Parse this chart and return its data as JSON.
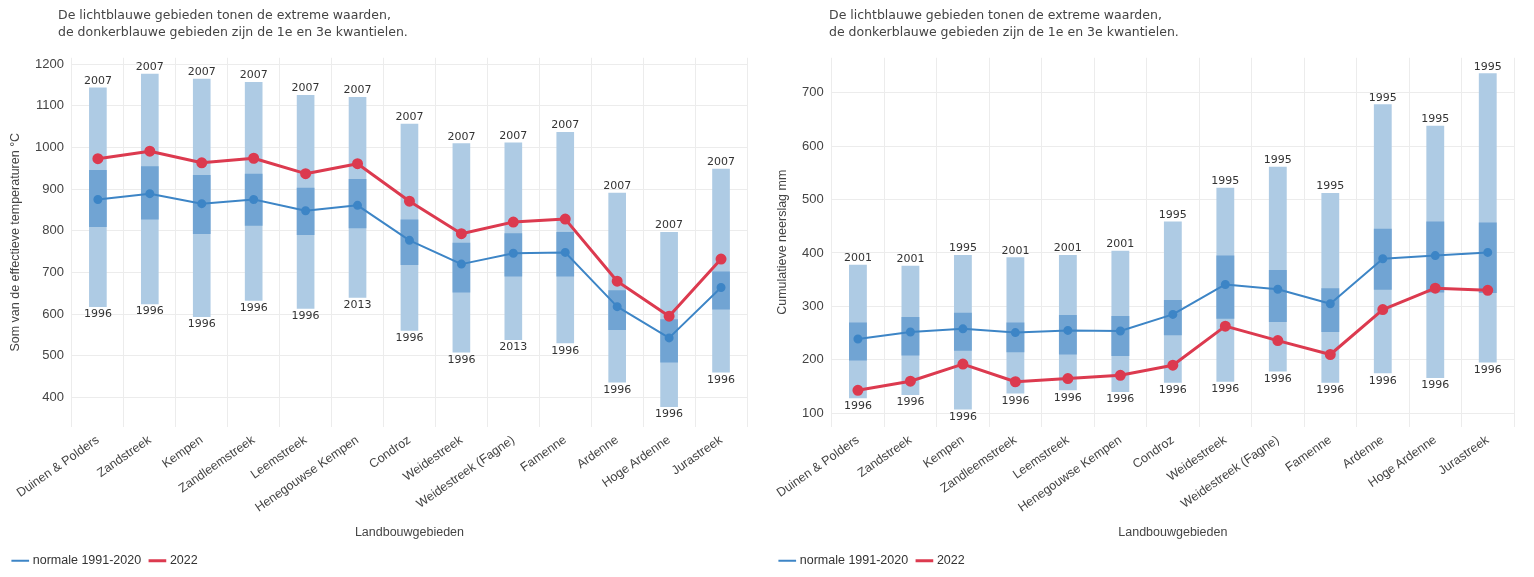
{
  "chart_data": [
    {
      "type": "bar",
      "title": "De lichtblauwe gebieden tonen de extreme waarden,\nde donkerblauwe gebieden zijn de 1e en 3e kwantielen.",
      "xlabel": "Landbouwgebieden",
      "ylabel": "Som van de effectieve temperaturen °C",
      "categories": [
        "Duinen & Polders",
        "Zandstreek",
        "Kempen",
        "Zandleemstreek",
        "Leemstreek",
        "Henegouwse Kempen",
        "Condroz",
        "Weidestreek",
        "Weidestreek (Fagne)",
        "Famenne",
        "Ardenne",
        "Hoge Ardenne",
        "Jurastreek"
      ],
      "series": [
        {
          "color": "#aecbe4",
          "base": [
            617,
            624,
            593,
            632,
            613,
            639,
            560,
            508,
            538,
            530,
            436,
            377,
            460
          ],
          "values": [
            527,
            553,
            572,
            525,
            513,
            482,
            497,
            502,
            474,
            507,
            455,
            420,
            489
          ]
        },
        {
          "color": "#71a4d3",
          "base": [
            809,
            827,
            792,
            812,
            790,
            806,
            718,
            652,
            690,
            690,
            562,
            484,
            611
          ],
          "values": [
            137,
            128,
            142,
            125,
            113,
            118,
            109,
            119,
            104,
            107,
            95,
            104,
            91
          ]
        },
        {
          "type": "line",
          "name": "normale 1991-2020",
          "color": "#3d85c6",
          "values": [
            875,
            889,
            865,
            875,
            848,
            861,
            777,
            720,
            746,
            748,
            618,
            543,
            664
          ]
        },
        {
          "type": "line",
          "name": "2022",
          "color": "#dc3a4f",
          "values": [
            973,
            991,
            963,
            974,
            937,
            961,
            871,
            793,
            821,
            828,
            679,
            595,
            732
          ]
        }
      ],
      "ylim": [
        330,
        1215
      ],
      "yticks": [
        400,
        500,
        600,
        700,
        800,
        900,
        1000,
        1100,
        1200
      ],
      "grid": true,
      "legend": "bottom left",
      "marker": "circle",
      "line_style": "solid",
      "annotations": [
        {
          "text": "2007",
          "x": "Duinen & Polders",
          "y": 1144
        },
        {
          "text": "1996",
          "x": "Duinen & Polders",
          "y": 617
        },
        {
          "text": "2007",
          "x": "Zandstreek",
          "y": 1177
        },
        {
          "text": "1996",
          "x": "Zandstreek",
          "y": 624
        },
        {
          "text": "2007",
          "x": "Kempen",
          "y": 1165
        },
        {
          "text": "1996",
          "x": "Kempen",
          "y": 593
        },
        {
          "text": "2007",
          "x": "Zandleemstreek",
          "y": 1157
        },
        {
          "text": "1996",
          "x": "Zandleemstreek",
          "y": 632
        },
        {
          "text": "2007",
          "x": "Leemstreek",
          "y": 1126
        },
        {
          "text": "1996",
          "x": "Leemstreek",
          "y": 613
        },
        {
          "text": "2007",
          "x": "Henegouwse Kempen",
          "y": 1121
        },
        {
          "text": "2013",
          "x": "Henegouwse Kempen",
          "y": 639
        },
        {
          "text": "2007",
          "x": "Condroz",
          "y": 1057
        },
        {
          "text": "1996",
          "x": "Condroz",
          "y": 560
        },
        {
          "text": "2007",
          "x": "Weidestreek",
          "y": 1010
        },
        {
          "text": "1996",
          "x": "Weidestreek",
          "y": 508
        },
        {
          "text": "2007",
          "x": "Weidestreek (Fagne)",
          "y": 1012
        },
        {
          "text": "2013",
          "x": "Weidestreek (Fagne)",
          "y": 538
        },
        {
          "text": "2007",
          "x": "Famenne",
          "y": 1037
        },
        {
          "text": "1996",
          "x": "Famenne",
          "y": 530
        },
        {
          "text": "2007",
          "x": "Ardenne",
          "y": 891
        },
        {
          "text": "1996",
          "x": "Ardenne",
          "y": 436
        },
        {
          "text": "2007",
          "x": "Hoge Ardenne",
          "y": 797
        },
        {
          "text": "1996",
          "x": "Hoge Ardenne",
          "y": 377
        },
        {
          "text": "2007",
          "x": "Jurastreek",
          "y": 949
        },
        {
          "text": "1996",
          "x": "Jurastreek",
          "y": 460
        }
      ]
    },
    {
      "type": "bar",
      "title": "De lichtblauwe gebieden tonen de extreme waarden,\nde donkerblauwe gebieden zijn de 1e en 3e kwantielen.",
      "xlabel": "Landbouwgebieden",
      "ylabel": "Cumulatieve neerslag mm",
      "categories": [
        "Duinen & Polders",
        "Zandstreek",
        "Kempen",
        "Zandleemstreek",
        "Leemstreek",
        "Henegouwse Kempen",
        "Condroz",
        "Weidestreek",
        "Weidestreek (Fagne)",
        "Famenne",
        "Ardenne",
        "Hoge Ardenne",
        "Jurastreek"
      ],
      "series": [
        {
          "color": "#aecbe4",
          "base": [
            128,
            134,
            107,
            137,
            143,
            140,
            157,
            159,
            178,
            157,
            175,
            166,
            195
          ],
          "values": [
            250,
            242,
            289,
            255,
            253,
            264,
            302,
            363,
            383,
            355,
            503,
            472,
            541
          ]
        },
        {
          "color": "#71a4d3",
          "base": [
            199,
            208,
            217,
            214,
            210,
            207,
            246,
            277,
            271,
            252,
            331,
            326,
            325
          ],
          "values": [
            71,
            72,
            71,
            56,
            74,
            75,
            66,
            118,
            97,
            82,
            114,
            133,
            132
          ]
        },
        {
          "type": "line",
          "name": "normale 1991-2020",
          "color": "#3d85c6",
          "values": [
            239,
            252,
            258,
            251,
            255,
            254,
            285,
            341,
            332,
            305,
            389,
            395,
            401
          ]
        },
        {
          "type": "line",
          "name": "2022",
          "color": "#dc3a4f",
          "values": [
            143,
            160,
            192,
            159,
            165,
            171,
            190,
            263,
            236,
            210,
            294,
            334,
            330
          ]
        }
      ],
      "ylim": [
        75,
        765
      ],
      "yticks": [
        100,
        200,
        300,
        400,
        500,
        600,
        700
      ],
      "grid": true,
      "legend": "bottom left",
      "marker": "circle",
      "line_style": "solid",
      "annotations": [
        {
          "text": "2001",
          "x": "Duinen & Polders",
          "y": 378
        },
        {
          "text": "1996",
          "x": "Duinen & Polders",
          "y": 128
        },
        {
          "text": "2001",
          "x": "Zandstreek",
          "y": 376
        },
        {
          "text": "1996",
          "x": "Zandstreek",
          "y": 134
        },
        {
          "text": "1995",
          "x": "Kempen",
          "y": 396
        },
        {
          "text": "1996",
          "x": "Kempen",
          "y": 107
        },
        {
          "text": "2001",
          "x": "Zandleemstreek",
          "y": 392
        },
        {
          "text": "1996",
          "x": "Zandleemstreek",
          "y": 137
        },
        {
          "text": "2001",
          "x": "Leemstreek",
          "y": 396
        },
        {
          "text": "1996",
          "x": "Leemstreek",
          "y": 143
        },
        {
          "text": "2001",
          "x": "Henegouwse Kempen",
          "y": 404
        },
        {
          "text": "1996",
          "x": "Henegouwse Kempen",
          "y": 140
        },
        {
          "text": "1995",
          "x": "Condroz",
          "y": 459
        },
        {
          "text": "1996",
          "x": "Condroz",
          "y": 157
        },
        {
          "text": "1995",
          "x": "Weidestreek",
          "y": 522
        },
        {
          "text": "1996",
          "x": "Weidestreek",
          "y": 159
        },
        {
          "text": "1995",
          "x": "Weidestreek (Fagne)",
          "y": 561
        },
        {
          "text": "1996",
          "x": "Weidestreek (Fagne)",
          "y": 178
        },
        {
          "text": "1995",
          "x": "Famenne",
          "y": 512
        },
        {
          "text": "1996",
          "x": "Famenne",
          "y": 157
        },
        {
          "text": "1995",
          "x": "Ardenne",
          "y": 678
        },
        {
          "text": "1996",
          "x": "Ardenne",
          "y": 175
        },
        {
          "text": "1995",
          "x": "Hoge Ardenne",
          "y": 638
        },
        {
          "text": "1996",
          "x": "Hoge Ardenne",
          "y": 166
        },
        {
          "text": "1995",
          "x": "Jurastreek",
          "y": 736
        },
        {
          "text": "1996",
          "x": "Jurastreek",
          "y": 195
        }
      ]
    }
  ]
}
